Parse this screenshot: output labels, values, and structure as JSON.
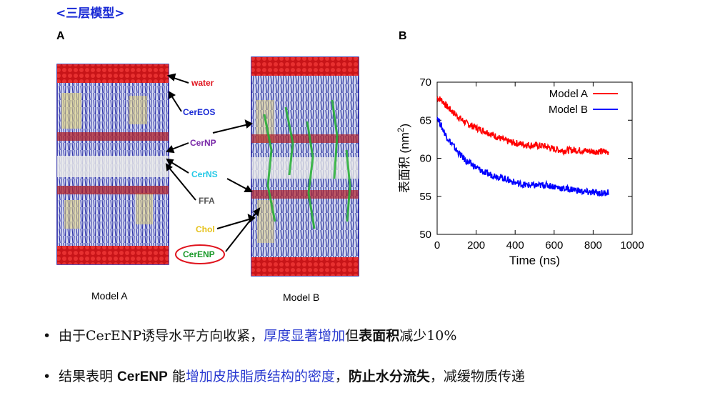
{
  "section_title": "<三层模型>",
  "panel_a": {
    "letter": "A",
    "model_a_caption": "Model A",
    "model_b_caption": "Model B",
    "labels": [
      {
        "text": "water",
        "color": "#e0141e"
      },
      {
        "text": "CerEOS",
        "color": "#1a2bd6"
      },
      {
        "text": "CerNP",
        "color": "#7a2aa8"
      },
      {
        "text": "CerNS",
        "color": "#22c8e6"
      },
      {
        "text": "FFA",
        "color": "#555555"
      },
      {
        "text": "Chol",
        "color": "#e6c21a"
      },
      {
        "text": "CerENP",
        "color": "#1a9a2a"
      }
    ],
    "highlight_ring_color": "#e0141e"
  },
  "panel_b": {
    "letter": "B"
  },
  "chart_data": {
    "type": "line",
    "title": "",
    "xlabel": "Time (ns)",
    "ylabel": "表面积 (nm",
    "ylabel_sup": "2",
    "ylabel_close": ")",
    "xlim": [
      0,
      1000
    ],
    "ylim": [
      50,
      70
    ],
    "xticks": [
      0,
      200,
      400,
      600,
      800,
      1000
    ],
    "yticks": [
      50,
      55,
      60,
      65,
      70
    ],
    "legend_position": "top-right",
    "series": [
      {
        "name": "Model A",
        "color": "#ff0000",
        "x": [
          0,
          25,
          50,
          100,
          150,
          200,
          250,
          300,
          350,
          400,
          450,
          500,
          550,
          600,
          650,
          700,
          750,
          800,
          850,
          880
        ],
        "values": [
          68.0,
          67.6,
          66.8,
          65.6,
          64.6,
          64.0,
          63.5,
          62.9,
          62.3,
          62.0,
          61.8,
          61.7,
          61.6,
          61.2,
          61.0,
          61.1,
          61.0,
          60.9,
          60.9,
          60.8
        ]
      },
      {
        "name": "Model B",
        "color": "#0000ff",
        "x": [
          0,
          25,
          50,
          100,
          150,
          200,
          250,
          300,
          350,
          400,
          450,
          500,
          550,
          600,
          650,
          700,
          750,
          800,
          850,
          880
        ],
        "values": [
          65.5,
          64.0,
          62.8,
          61.0,
          59.6,
          58.8,
          58.0,
          57.7,
          57.3,
          56.8,
          56.5,
          56.4,
          56.5,
          56.3,
          56.0,
          55.9,
          55.6,
          55.5,
          55.4,
          55.6
        ]
      }
    ]
  },
  "bullets": [
    {
      "marker": "•",
      "parts": [
        {
          "text": "由于CerENP诱导水平方向收紧，",
          "style": "normal"
        },
        {
          "text": "厚度显著增加",
          "style": "hl"
        },
        {
          "text": "但",
          "style": "normal"
        },
        {
          "text": "表面积",
          "style": "bold"
        },
        {
          "text": "减少10%",
          "style": "normal"
        }
      ]
    },
    {
      "marker": "•",
      "parts": [
        {
          "text": "结果表明 ",
          "style": "normal"
        },
        {
          "text": "CerENP",
          "style": "sans-bold"
        },
        {
          "text": " 能",
          "style": "normal"
        },
        {
          "text": "增加皮肤脂质结构的密度",
          "style": "hl"
        },
        {
          "text": "，",
          "style": "normal"
        },
        {
          "text": "防止水分流失",
          "style": "bold"
        },
        {
          "text": "，减缓物质传递",
          "style": "normal"
        }
      ]
    }
  ]
}
